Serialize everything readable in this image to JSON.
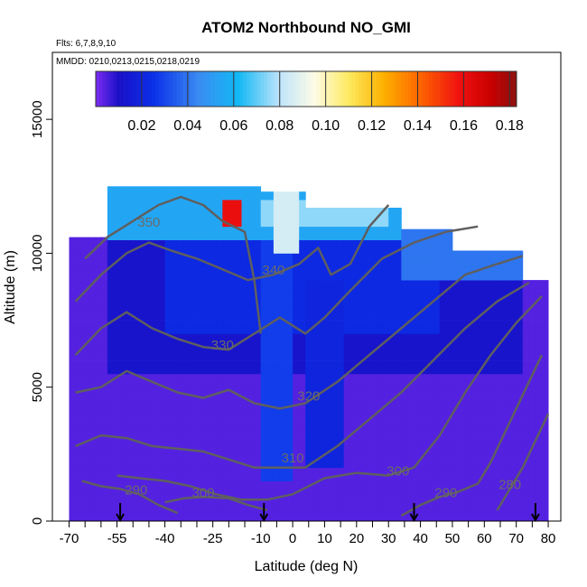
{
  "chart_data": {
    "type": "heatmap",
    "title": "ATOM2 Northbound NO_GMI",
    "subtitle_flights": "Flts: 6,7,8,9,10",
    "subtitle_dates": "MMDD: 0210,0213,0215,0218,0219",
    "xlabel": "Latitude (deg N)",
    "ylabel": "Altitude (m)",
    "xlim": [
      -70,
      82
    ],
    "ylim": [
      0,
      17500
    ],
    "x_ticks": [
      -70,
      -55,
      -40,
      -25,
      -10,
      0,
      10,
      20,
      30,
      40,
      50,
      60,
      70,
      80
    ],
    "y_ticks": [
      0,
      5000,
      10000,
      15000
    ],
    "colorbar": {
      "min": 0.0,
      "max": 0.183,
      "tick_labels": [
        "0.02",
        "0.04",
        "0.06",
        "0.08",
        "0.10",
        "0.12",
        "0.14",
        "0.16",
        "0.18"
      ],
      "tick_values": [
        0.02,
        0.04,
        0.06,
        0.08,
        0.1,
        0.12,
        0.14,
        0.16,
        0.18
      ],
      "stops": [
        {
          "v": 0.0,
          "c": "#7b2cf0"
        },
        {
          "v": 0.01,
          "c": "#1a10c8"
        },
        {
          "v": 0.025,
          "c": "#0a2fe8"
        },
        {
          "v": 0.045,
          "c": "#3a8cf2"
        },
        {
          "v": 0.062,
          "c": "#12b8f5"
        },
        {
          "v": 0.08,
          "c": "#bfe4fb"
        },
        {
          "v": 0.095,
          "c": "#fdfbe6"
        },
        {
          "v": 0.11,
          "c": "#fdea60"
        },
        {
          "v": 0.125,
          "c": "#fdb100"
        },
        {
          "v": 0.14,
          "c": "#fe6a00"
        },
        {
          "v": 0.158,
          "c": "#f01010"
        },
        {
          "v": 0.172,
          "c": "#c80000"
        },
        {
          "v": 0.183,
          "c": "#8a1010"
        }
      ]
    },
    "altitude_bands": [
      {
        "lat0": -70,
        "lat1": -57,
        "alt_top": 10600,
        "alt_bottom": 0
      },
      {
        "lat0": -57,
        "lat1": -10,
        "alt_top": 12500,
        "alt_bottom": 0
      },
      {
        "lat0": -10,
        "lat1": 5,
        "alt_top": 12300,
        "alt_bottom": 0
      },
      {
        "lat0": 5,
        "lat1": 35,
        "alt_top": 11700,
        "alt_bottom": 0
      },
      {
        "lat0": 35,
        "lat1": 50,
        "alt_top": 10900,
        "alt_bottom": 0
      },
      {
        "lat0": 50,
        "lat1": 72,
        "alt_top": 10100,
        "alt_bottom": 0
      },
      {
        "lat0": 72,
        "lat1": 80,
        "alt_top": 9000,
        "alt_bottom": 0
      }
    ],
    "field_regions": [
      {
        "lat0": -70,
        "lat1": 82,
        "alt0": 0,
        "alt1": 13000,
        "value": 0.004
      },
      {
        "lat0": -57,
        "lat1": 72,
        "alt0": 5500,
        "alt1": 10500,
        "value": 0.012
      },
      {
        "lat0": -40,
        "lat1": 45,
        "alt0": 7000,
        "alt1": 10300,
        "value": 0.022
      },
      {
        "lat0": -10,
        "lat1": 0,
        "alt0": 1500,
        "alt1": 12500,
        "value": 0.028
      },
      {
        "lat0": 5,
        "lat1": 15,
        "alt0": 2000,
        "alt1": 9000,
        "value": 0.02
      },
      {
        "lat0": -57,
        "lat1": 35,
        "alt0": 10500,
        "alt1": 12500,
        "value": 0.055
      },
      {
        "lat0": -10,
        "lat1": 30,
        "alt0": 10800,
        "alt1": 12000,
        "value": 0.075
      },
      {
        "lat0": -6,
        "lat1": 2,
        "alt0": 10000,
        "alt1": 12300,
        "value": 0.085
      },
      {
        "lat0": -22,
        "lat1": -16,
        "alt0": 11200,
        "alt1": 12000,
        "value": 0.16
      },
      {
        "lat0": 35,
        "lat1": 72,
        "alt0": 9000,
        "alt1": 10800,
        "value": 0.04
      }
    ],
    "contours": [
      {
        "label": "350",
        "label_at": [
          -45,
          11000
        ],
        "points": [
          [
            -65,
            9800
          ],
          [
            -58,
            10600
          ],
          [
            -50,
            11200
          ],
          [
            -42,
            11800
          ],
          [
            -35,
            12100
          ],
          [
            -28,
            11800
          ],
          [
            -22,
            11200
          ],
          [
            -15,
            10800
          ],
          [
            -12,
            9000
          ],
          [
            -10,
            7000
          ]
        ]
      },
      {
        "label": "340",
        "label_at": [
          -6,
          9200
        ],
        "points": [
          [
            -68,
            8200
          ],
          [
            -60,
            9200
          ],
          [
            -52,
            10000
          ],
          [
            -45,
            10400
          ],
          [
            -38,
            10100
          ],
          [
            -30,
            9800
          ],
          [
            -22,
            9400
          ],
          [
            -14,
            9000
          ],
          [
            -6,
            9200
          ],
          [
            2,
            9600
          ],
          [
            8,
            10200
          ],
          [
            12,
            9200
          ],
          [
            18,
            9600
          ],
          [
            24,
            11000
          ],
          [
            30,
            11800
          ]
        ]
      },
      {
        "label": "330",
        "label_at": [
          -22,
          6400
        ],
        "points": [
          [
            -68,
            6200
          ],
          [
            -60,
            7200
          ],
          [
            -52,
            7800
          ],
          [
            -44,
            7200
          ],
          [
            -36,
            6800
          ],
          [
            -28,
            6500
          ],
          [
            -20,
            6400
          ],
          [
            -12,
            7000
          ],
          [
            -4,
            7600
          ],
          [
            4,
            7000
          ],
          [
            10,
            7600
          ],
          [
            18,
            8600
          ],
          [
            28,
            9800
          ],
          [
            38,
            10400
          ],
          [
            48,
            10800
          ],
          [
            58,
            11000
          ]
        ]
      },
      {
        "label": "320",
        "label_at": [
          5,
          4500
        ],
        "points": [
          [
            -68,
            4800
          ],
          [
            -60,
            5000
          ],
          [
            -52,
            5600
          ],
          [
            -44,
            5200
          ],
          [
            -36,
            4800
          ],
          [
            -28,
            4600
          ],
          [
            -20,
            4900
          ],
          [
            -12,
            4400
          ],
          [
            -4,
            4200
          ],
          [
            4,
            4400
          ],
          [
            14,
            5200
          ],
          [
            24,
            6200
          ],
          [
            34,
            7200
          ],
          [
            44,
            8200
          ],
          [
            54,
            9200
          ],
          [
            64,
            9600
          ],
          [
            72,
            9900
          ]
        ]
      },
      {
        "label": "310",
        "label_at": [
          0,
          2200
        ],
        "points": [
          [
            -68,
            2800
          ],
          [
            -60,
            3200
          ],
          [
            -52,
            3100
          ],
          [
            -44,
            2800
          ],
          [
            -36,
            2700
          ],
          [
            -28,
            2600
          ],
          [
            -20,
            2300
          ],
          [
            -12,
            2000
          ],
          [
            -4,
            2000
          ],
          [
            4,
            2000
          ],
          [
            14,
            2800
          ],
          [
            24,
            3800
          ],
          [
            34,
            4800
          ],
          [
            44,
            6000
          ],
          [
            54,
            7200
          ],
          [
            64,
            8200
          ],
          [
            74,
            8900
          ]
        ]
      },
      {
        "label": "300",
        "label_at": [
          33,
          1700
        ],
        "points": [
          [
            -55,
            1700
          ],
          [
            -48,
            1600
          ],
          [
            -40,
            1500
          ],
          [
            -32,
            1300
          ],
          [
            -24,
            1000
          ],
          [
            -16,
            800
          ],
          [
            -8,
            800
          ],
          [
            0,
            1000
          ],
          [
            10,
            1600
          ],
          [
            20,
            1800
          ],
          [
            30,
            1700
          ],
          [
            38,
            2000
          ],
          [
            46,
            3200
          ],
          [
            54,
            4800
          ],
          [
            62,
            6200
          ],
          [
            70,
            7400
          ],
          [
            78,
            8400
          ]
        ]
      },
      {
        "label": "290",
        "label_at": [
          -49,
          1000
        ],
        "points": [
          [
            -66,
            1500
          ],
          [
            -60,
            1300
          ],
          [
            -54,
            1200
          ],
          [
            -48,
            1000
          ],
          [
            -42,
            600
          ],
          [
            -36,
            300
          ]
        ]
      },
      {
        "label": "300",
        "label_at": [
          -28,
          900
        ],
        "points": [
          [
            -40,
            700
          ],
          [
            -34,
            850
          ],
          [
            -28,
            900
          ],
          [
            -20,
            850
          ],
          [
            -14,
            600
          ],
          [
            -8,
            400
          ]
        ]
      },
      {
        "label": "290",
        "label_at": [
          48,
          900
        ],
        "points": [
          [
            34,
            200
          ],
          [
            40,
            600
          ],
          [
            46,
            900
          ],
          [
            52,
            1100
          ],
          [
            58,
            1400
          ],
          [
            62,
            2200
          ],
          [
            66,
            3200
          ],
          [
            70,
            4200
          ],
          [
            74,
            5200
          ],
          [
            78,
            6200
          ]
        ]
      },
      {
        "label": "280",
        "label_at": [
          68,
          1200
        ],
        "points": [
          [
            64,
            400
          ],
          [
            68,
            1200
          ],
          [
            72,
            2000
          ],
          [
            76,
            3000
          ],
          [
            80,
            4000
          ]
        ]
      }
    ],
    "flight_markers_lat": [
      -54,
      -9,
      38,
      76
    ]
  }
}
